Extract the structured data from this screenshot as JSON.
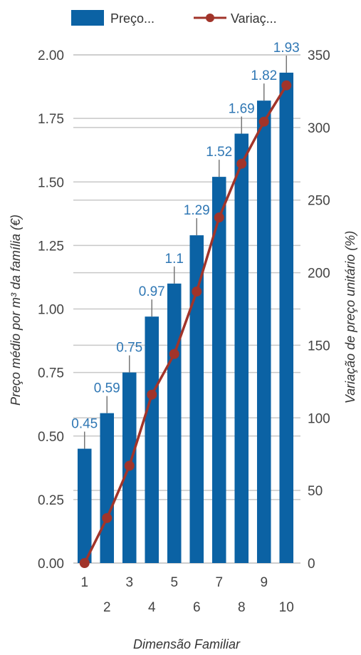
{
  "chart_data": {
    "type": "bar",
    "categories": [
      "1",
      "2",
      "3",
      "4",
      "5",
      "6",
      "7",
      "8",
      "9",
      "10"
    ],
    "series": [
      {
        "name": "Preço...",
        "type": "bar",
        "axis": "left",
        "values": [
          0.45,
          0.59,
          0.75,
          0.97,
          1.1,
          1.29,
          1.52,
          1.69,
          1.82,
          1.93
        ],
        "data_labels": [
          "0.45",
          "0.59",
          "0.75",
          "0.97",
          "1.1",
          "1.29",
          "1.52",
          "1.69",
          "1.82",
          "1.93"
        ]
      },
      {
        "name": "Variaç...",
        "type": "line",
        "axis": "right",
        "values": [
          0,
          31,
          67,
          116,
          144,
          187,
          238,
          275,
          304,
          329
        ]
      }
    ],
    "xlabel": "Dimensão Familiar",
    "ylabel": "Preço médio por m³ da família (€)",
    "y2label": "Variação de preço unitário (%)",
    "ylim": [
      0,
      2.0
    ],
    "y2lim": [
      0,
      350
    ],
    "yticks": [
      "0.00",
      "0.25",
      "0.50",
      "0.75",
      "1.00",
      "1.25",
      "1.50",
      "1.75",
      "2.00"
    ],
    "y2ticks": [
      "0",
      "50",
      "100",
      "150",
      "200",
      "250",
      "300",
      "350"
    ],
    "grid": true,
    "legend_position": "top",
    "colors": {
      "bar": "#0b62a4",
      "line": "#a1342a",
      "label": "#2f77b4",
      "grid": "#c8c8c8"
    }
  }
}
